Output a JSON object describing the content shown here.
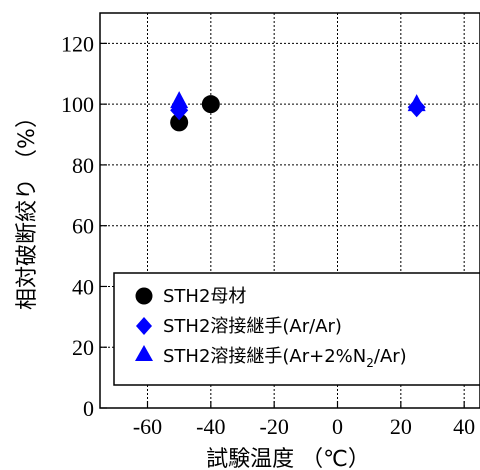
{
  "chart_data": {
    "type": "scatter",
    "xlabel": "試験温度 （℃）",
    "ylabel": "相対破断絞り （%）",
    "xlim": [
      -75,
      45
    ],
    "ylim": [
      0,
      130
    ],
    "x_ticks": [
      -60,
      -40,
      -20,
      0,
      20,
      40
    ],
    "y_ticks": [
      0,
      20,
      40,
      60,
      80,
      100,
      120
    ],
    "grid": true,
    "legend_position": "bottom-right",
    "series": [
      {
        "name": "STH2母材",
        "marker": "circle",
        "color": "#000000",
        "points": [
          {
            "x": -50,
            "y": 94
          },
          {
            "x": -40,
            "y": 100
          }
        ]
      },
      {
        "name": "STH2溶接継手(Ar/Ar)",
        "marker": "diamond",
        "color": "#0000ff",
        "points": [
          {
            "x": -50,
            "y": 98
          },
          {
            "x": 25,
            "y": 99
          }
        ]
      },
      {
        "name": "STH2溶接継手(Ar+2%N2/Ar)",
        "marker": "triangle",
        "color": "#0000ff",
        "points": [
          {
            "x": -50,
            "y": 101
          },
          {
            "x": 25,
            "y": 100
          }
        ]
      }
    ]
  },
  "legend_texts": [
    "STH2母材",
    "STH2溶接継手(Ar/Ar)",
    "STH2溶接継手(Ar+2%N",
    "2",
    "/Ar)"
  ]
}
